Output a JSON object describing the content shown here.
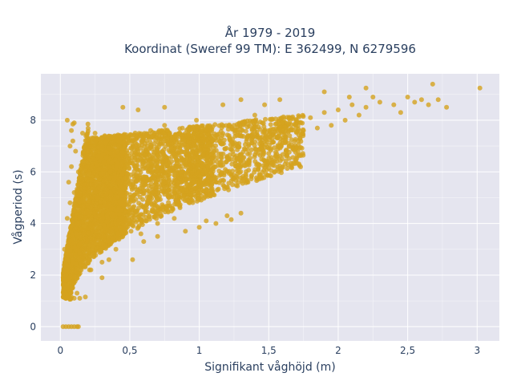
{
  "chart_data": {
    "type": "scatter",
    "title_line1": "År 1979 - 2019",
    "title_line2": "Koordinat (Sweref 99 TM): E 362499, N 6279596",
    "xlabel": "Signifikant våghöjd (m)",
    "ylabel": "Vågperiod (s)",
    "xlim": [
      -0.14,
      3.16
    ],
    "ylim": [
      -0.55,
      9.8
    ],
    "x_ticks": [
      0,
      0.5,
      1,
      1.5,
      2,
      2.5,
      3
    ],
    "x_tick_labels": [
      "0",
      "0,5",
      "1",
      "1,5",
      "2",
      "2,5",
      "3"
    ],
    "y_ticks": [
      0,
      2,
      4,
      6,
      8
    ],
    "y_tick_labels": [
      "0",
      "2",
      "4",
      "6",
      "8"
    ],
    "grid": true,
    "legend": "none",
    "colors": {
      "marker": "#d4a21e",
      "plot_bg": "#e5e5ef",
      "grid": "#ffffff",
      "text": "#2a3f5f"
    },
    "series": [
      {
        "points": [
          [
            0.02,
            0
          ],
          [
            0.04,
            0
          ],
          [
            0.06,
            0
          ],
          [
            0.08,
            0
          ],
          [
            0.1,
            0
          ],
          [
            0.12,
            0
          ],
          [
            0.13,
            0
          ],
          [
            0.03,
            1.5
          ],
          [
            0.05,
            1.6
          ],
          [
            0.04,
            2.0
          ],
          [
            0.05,
            2.6
          ],
          [
            0.03,
            3.0
          ],
          [
            0.06,
            3.5
          ],
          [
            0.05,
            4.2
          ],
          [
            0.07,
            4.8
          ],
          [
            0.06,
            5.6
          ],
          [
            0.08,
            6.2
          ],
          [
            0.07,
            7.0
          ],
          [
            0.08,
            7.6
          ],
          [
            0.09,
            7.85
          ],
          [
            0.1,
            7.9
          ],
          [
            0.09,
            7.2
          ],
          [
            0.11,
            6.8
          ],
          [
            0.1,
            1.1
          ],
          [
            0.14,
            1.1
          ],
          [
            0.18,
            1.15
          ],
          [
            0.12,
            1.3
          ],
          [
            0.1,
            5.2
          ],
          [
            0.12,
            4.0
          ],
          [
            0.13,
            6.0
          ],
          [
            0.15,
            2.2
          ],
          [
            0.14,
            3.2
          ],
          [
            0.16,
            7.5
          ],
          [
            0.17,
            5.5
          ],
          [
            0.19,
            4.5
          ],
          [
            0.2,
            3.0
          ],
          [
            0.22,
            2.2
          ],
          [
            0.24,
            6.5
          ],
          [
            0.25,
            7.5
          ],
          [
            0.27,
            5.0
          ],
          [
            0.28,
            3.5
          ],
          [
            0.3,
            2.5
          ],
          [
            0.32,
            7.4
          ],
          [
            0.34,
            4.2
          ],
          [
            0.36,
            6.0
          ],
          [
            0.38,
            3.4
          ],
          [
            0.4,
            5.8
          ],
          [
            0.42,
            7.0
          ],
          [
            0.44,
            4.8
          ],
          [
            0.46,
            3.6
          ],
          [
            0.48,
            6.6
          ],
          [
            0.5,
            4.0
          ],
          [
            0.52,
            7.2
          ],
          [
            0.55,
            5.2
          ],
          [
            0.58,
            3.6
          ],
          [
            0.6,
            6.8
          ],
          [
            0.62,
            4.6
          ],
          [
            0.65,
            7.6
          ],
          [
            0.68,
            5.8
          ],
          [
            0.7,
            4.0
          ],
          [
            0.72,
            6.4
          ],
          [
            0.75,
            7.8
          ],
          [
            0.78,
            5.0
          ],
          [
            0.8,
            6.9
          ],
          [
            0.82,
            4.2
          ],
          [
            0.85,
            5.6
          ],
          [
            0.88,
            7.4
          ],
          [
            0.9,
            6.2
          ],
          [
            0.93,
            4.8
          ],
          [
            0.95,
            7.0
          ],
          [
            0.98,
            8.0
          ],
          [
            1.0,
            6.0
          ],
          [
            1.05,
            7.6
          ],
          [
            1.1,
            6.4
          ],
          [
            1.12,
            4.0
          ],
          [
            1.15,
            7.2
          ],
          [
            1.2,
            6.6
          ],
          [
            1.25,
            7.8
          ],
          [
            1.3,
            6.6
          ],
          [
            1.35,
            7.4
          ],
          [
            1.4,
            8.2
          ],
          [
            1.45,
            7.0
          ],
          [
            1.5,
            7.6
          ],
          [
            1.55,
            6.6
          ],
          [
            1.6,
            7.9
          ],
          [
            1.65,
            7.4
          ],
          [
            1.7,
            8.0
          ],
          [
            1.75,
            7.6
          ],
          [
            1.8,
            8.1
          ],
          [
            1.85,
            7.7
          ],
          [
            1.9,
            8.3
          ],
          [
            1.95,
            7.8
          ],
          [
            2.0,
            8.4
          ],
          [
            2.05,
            8.0
          ],
          [
            2.1,
            8.6
          ],
          [
            2.15,
            8.2
          ],
          [
            2.2,
            8.5
          ],
          [
            2.25,
            8.9
          ],
          [
            2.3,
            8.7
          ],
          [
            2.4,
            8.6
          ],
          [
            2.45,
            8.3
          ],
          [
            2.5,
            8.9
          ],
          [
            2.55,
            8.7
          ],
          [
            2.6,
            8.8
          ],
          [
            2.65,
            8.6
          ],
          [
            2.68,
            9.4
          ],
          [
            2.72,
            8.8
          ],
          [
            2.78,
            8.5
          ],
          [
            3.02,
            9.25
          ],
          [
            0.45,
            8.5
          ],
          [
            0.56,
            8.4
          ],
          [
            0.75,
            8.5
          ],
          [
            1.17,
            8.6
          ],
          [
            1.3,
            8.8
          ],
          [
            1.47,
            8.6
          ],
          [
            1.58,
            8.8
          ],
          [
            1.9,
            9.1
          ],
          [
            2.08,
            8.9
          ],
          [
            2.2,
            9.25
          ],
          [
            0.21,
            2.2
          ],
          [
            0.3,
            1.9
          ],
          [
            0.35,
            2.6
          ],
          [
            0.4,
            3.0
          ],
          [
            0.6,
            3.3
          ],
          [
            0.7,
            3.5
          ],
          [
            0.9,
            3.7
          ],
          [
            1.0,
            3.85
          ],
          [
            1.05,
            4.1
          ],
          [
            1.2,
            4.3
          ],
          [
            1.23,
            4.15
          ],
          [
            1.3,
            4.4
          ],
          [
            0.05,
            8.0
          ],
          [
            0.52,
            2.6
          ]
        ]
      }
    ]
  }
}
